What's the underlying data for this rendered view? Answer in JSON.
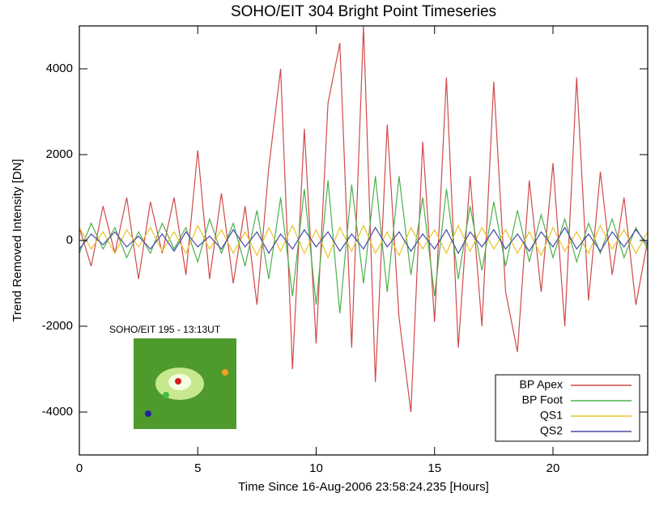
{
  "chart_data": {
    "type": "line",
    "title": "SOHO/EIT 304 Bright Point Timeseries",
    "xlabel": "Time Since 16-Aug-2006 23:58:24.235 [Hours]",
    "ylabel": "Trend Removed Intensity [DN]",
    "annotation": "SOHO/EIT 195 - 13:13UT",
    "legend": "lower right",
    "xlim": [
      0,
      24
    ],
    "xticks": [
      0,
      5,
      10,
      15,
      20
    ],
    "ylim": [
      -5000,
      5000
    ],
    "yticks": [
      -4000,
      -2000,
      0,
      2000,
      4000
    ],
    "x": [
      0,
      0.5,
      1,
      1.5,
      2,
      2.5,
      3,
      3.5,
      4,
      4.5,
      5,
      5.5,
      6,
      6.5,
      7,
      7.5,
      8,
      8.5,
      9,
      9.5,
      10,
      10.5,
      11,
      11.5,
      12,
      12.5,
      13,
      13.5,
      14,
      14.5,
      15,
      15.5,
      16,
      16.5,
      17,
      17.5,
      18,
      18.5,
      19,
      19.5,
      20,
      20.5,
      21,
      21.5,
      22,
      22.5,
      23,
      23.5,
      24
    ],
    "series": [
      {
        "name": "BP Apex",
        "color": "#d04a4a",
        "values": [
          300,
          -600,
          800,
          -300,
          1000,
          -900,
          900,
          -300,
          1000,
          -800,
          2100,
          -900,
          1100,
          -1000,
          800,
          -1500,
          1700,
          4000,
          -3000,
          2600,
          -2400,
          3200,
          4600,
          -2500,
          5000,
          -3300,
          2700,
          -1800,
          -4000,
          2300,
          -1900,
          3800,
          -2500,
          1500,
          -2000,
          3700,
          -1200,
          -2600,
          1400,
          -1200,
          1800,
          -2000,
          3800,
          -1400,
          1600,
          -800,
          1000,
          -1500,
          0
        ]
      },
      {
        "name": "BP Foot",
        "color": "#4cb04c",
        "values": [
          -300,
          400,
          -200,
          300,
          -400,
          200,
          -300,
          400,
          -200,
          300,
          -500,
          500,
          -300,
          400,
          -600,
          700,
          -900,
          1000,
          -1300,
          1200,
          -1500,
          1400,
          -1700,
          1300,
          -1000,
          1500,
          -1200,
          1500,
          -800,
          1000,
          -1300,
          1200,
          -900,
          800,
          -700,
          900,
          -600,
          700,
          -500,
          600,
          -400,
          500,
          -500,
          400,
          -300,
          500,
          -400,
          300,
          -200
        ]
      },
      {
        "name": "QS1",
        "color": "#e8c428",
        "values": [
          300,
          -200,
          200,
          -300,
          250,
          -150,
          300,
          -250,
          200,
          -300,
          350,
          -200,
          250,
          -300,
          200,
          -350,
          300,
          -250,
          350,
          -300,
          250,
          -400,
          300,
          -250,
          350,
          -300,
          200,
          -350,
          300,
          -200,
          250,
          -300,
          350,
          -250,
          300,
          -200,
          250,
          -300,
          200,
          -350,
          300,
          -250,
          200,
          -300,
          350,
          -200,
          250,
          -300,
          200
        ]
      },
      {
        "name": "QS2",
        "color": "#4a4aa8",
        "values": [
          -200,
          150,
          -100,
          200,
          -150,
          100,
          -200,
          150,
          -250,
          200,
          -150,
          100,
          -200,
          250,
          -150,
          200,
          -300,
          150,
          -200,
          250,
          -150,
          200,
          -250,
          150,
          -200,
          300,
          -150,
          200,
          -250,
          150,
          -200,
          250,
          -300,
          200,
          -150,
          250,
          -200,
          150,
          -250,
          200,
          -150,
          300,
          -200,
          150,
          -250,
          200,
          -150,
          250,
          -100
        ]
      }
    ]
  }
}
